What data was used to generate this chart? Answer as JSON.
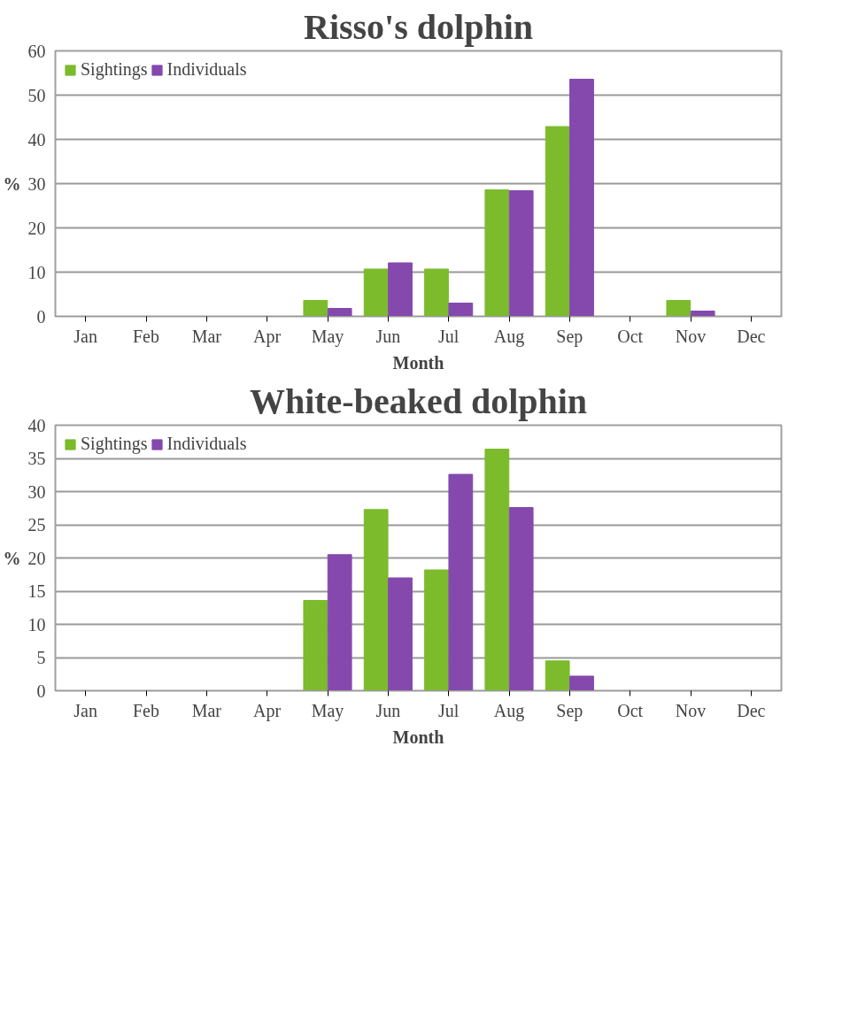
{
  "chart_data": [
    {
      "type": "bar",
      "title": "Risso's dolphin",
      "xlabel": "Month",
      "ylabel": "%",
      "categories": [
        "Jan",
        "Feb",
        "Mar",
        "Apr",
        "May",
        "Jun",
        "Jul",
        "Aug",
        "Sep",
        "Oct",
        "Nov",
        "Dec"
      ],
      "series": [
        {
          "name": "Sightings",
          "color": "#7cbb2c",
          "values": [
            0,
            0,
            0,
            0,
            3.6,
            10.7,
            10.7,
            28.6,
            42.9,
            0,
            3.6,
            0
          ]
        },
        {
          "name": "Individuals",
          "color": "#8549ad",
          "values": [
            0,
            0,
            0,
            0,
            1.8,
            12.1,
            3.0,
            28.4,
            53.6,
            0,
            1.2,
            0
          ]
        }
      ],
      "ylim": [
        0,
        60
      ],
      "yticks": [
        0,
        10,
        20,
        30,
        40,
        50,
        60
      ],
      "grid": "y",
      "legend": "top left"
    },
    {
      "type": "bar",
      "title": "White-beaked dolphin",
      "xlabel": "Month",
      "ylabel": "%",
      "categories": [
        "Jan",
        "Feb",
        "Mar",
        "Apr",
        "May",
        "Jun",
        "Jul",
        "Aug",
        "Sep",
        "Oct",
        "Nov",
        "Dec"
      ],
      "series": [
        {
          "name": "Sightings",
          "color": "#7cbb2c",
          "values": [
            0,
            0,
            0,
            0,
            13.6,
            27.3,
            18.2,
            36.4,
            4.5,
            0,
            0,
            0
          ]
        },
        {
          "name": "Individuals",
          "color": "#8549ad",
          "values": [
            0,
            0,
            0,
            0,
            20.5,
            17.0,
            32.6,
            27.6,
            2.2,
            0,
            0,
            0
          ]
        }
      ],
      "ylim": [
        0,
        40
      ],
      "yticks": [
        0,
        5,
        10,
        15,
        20,
        25,
        30,
        35,
        40
      ],
      "grid": "y",
      "legend": "top left"
    }
  ]
}
